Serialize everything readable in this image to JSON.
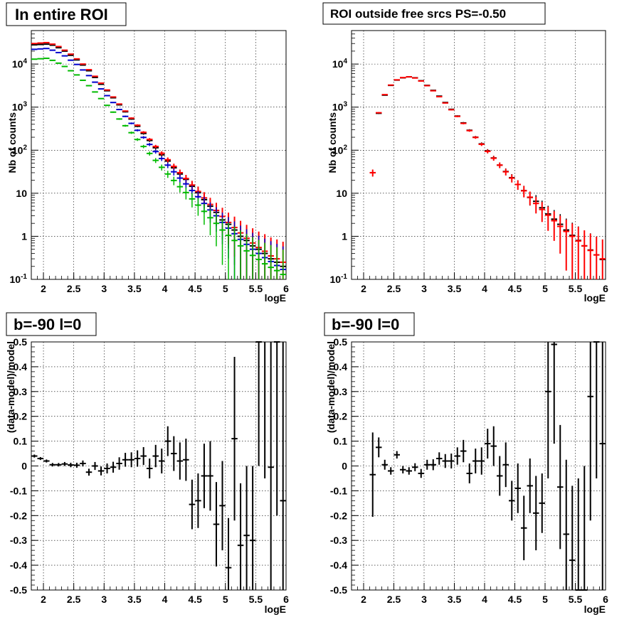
{
  "colors": {
    "data": "#000000",
    "model": "#ff0000",
    "blue": "#0000cc",
    "green": "#00bb00"
  },
  "chart_data": [
    {
      "type": "scatter",
      "title": "In entire ROI",
      "xlabel": "logE",
      "ylabel": "Nb of counts",
      "xlim": [
        1.8,
        6.0
      ],
      "ylim": [
        0.1,
        60000
      ],
      "yscale": "log",
      "grid": true,
      "x_ticks": [
        "2",
        "2.5",
        "3",
        "3.5",
        "4",
        "4.5",
        "5",
        "5.5",
        "6"
      ],
      "y_ticks": [
        "10^-1",
        "1",
        "10",
        "10^2",
        "10^3",
        "10^4"
      ],
      "bin_centers": [
        1.85,
        1.95,
        2.05,
        2.15,
        2.25,
        2.35,
        2.45,
        2.55,
        2.65,
        2.75,
        2.85,
        2.95,
        3.05,
        3.15,
        3.25,
        3.35,
        3.45,
        3.55,
        3.65,
        3.75,
        3.85,
        3.95,
        4.05,
        4.15,
        4.25,
        4.35,
        4.45,
        4.55,
        4.65,
        4.75,
        4.85,
        4.95,
        5.05,
        5.15,
        5.25,
        5.35,
        5.45,
        5.55,
        5.65,
        5.75,
        5.85,
        5.95
      ],
      "series": [
        {
          "color": "black",
          "values": [
            28000,
            28500,
            29000,
            27500,
            24000,
            20000,
            16000,
            12500,
            9500,
            7000,
            4900,
            3400,
            2400,
            1650,
            1130,
            780,
            530,
            360,
            245,
            168,
            114,
            78,
            56,
            39,
            28,
            21,
            14.5,
            10.3,
            7.1,
            5,
            3.6,
            2.4,
            1.9,
            1.4,
            1.0,
            0.8,
            0.6,
            0.5,
            0.4,
            0.3,
            0.25,
            0.2
          ]
        },
        {
          "color": "red",
          "values": [
            30000,
            30800,
            31500,
            29000,
            25500,
            21000,
            17000,
            13200,
            10000,
            7400,
            5200,
            3600,
            2500,
            1720,
            1180,
            810,
            555,
            380,
            260,
            178,
            122,
            85,
            60,
            42,
            30,
            22,
            15.5,
            11,
            7.8,
            5.5,
            4,
            2.9,
            2.1,
            1.6,
            1.2,
            0.9,
            0.7,
            0.55,
            0.45,
            0.35,
            0.3,
            0.25
          ]
        },
        {
          "color": "blue",
          "values": [
            22000,
            22500,
            23000,
            21000,
            18500,
            15500,
            12300,
            9800,
            7300,
            5400,
            3800,
            2650,
            1850,
            1280,
            880,
            610,
            420,
            290,
            198,
            136,
            93,
            64,
            45,
            31.5,
            22.5,
            16.5,
            11.6,
            8.3,
            5.8,
            4.1,
            3,
            2.1,
            1.55,
            1.15,
            0.85,
            0.65,
            0.5,
            0.4,
            0.32,
            0.26,
            0.21,
            0.17
          ]
        },
        {
          "color": "green",
          "values": [
            13000,
            13300,
            13600,
            12200,
            10500,
            8800,
            7000,
            5600,
            4200,
            3150,
            2250,
            1580,
            1100,
            765,
            530,
            370,
            255,
            177,
            122,
            84,
            58,
            40,
            28,
            19.8,
            14.2,
            10.4,
            7.4,
            5.3,
            3.8,
            2.7,
            2,
            1.4,
            1.05,
            0.8,
            0.6,
            0.46,
            0.36,
            0.29,
            0.23,
            0.19,
            0.16,
            0.13
          ]
        }
      ]
    },
    {
      "type": "scatter",
      "title": "ROI outside free srcs PS=-0.50",
      "xlabel": "logE",
      "ylabel": "Nb of counts",
      "xlim": [
        1.8,
        6.0
      ],
      "ylim": [
        0.1,
        60000
      ],
      "yscale": "log",
      "grid": true,
      "x_ticks": [
        "2",
        "2.5",
        "3",
        "3.5",
        "4",
        "4.5",
        "5",
        "5.5",
        "6"
      ],
      "y_ticks": [
        "10^-1",
        "1",
        "10",
        "10^2",
        "10^3",
        "10^4"
      ],
      "bin_centers": [
        2.15,
        2.25,
        2.35,
        2.45,
        2.55,
        2.65,
        2.75,
        2.85,
        2.95,
        3.05,
        3.15,
        3.25,
        3.35,
        3.45,
        3.55,
        3.65,
        3.75,
        3.85,
        3.95,
        4.05,
        4.15,
        4.25,
        4.35,
        4.45,
        4.55,
        4.65,
        4.75,
        4.85,
        4.95,
        5.05,
        5.15,
        5.25,
        5.35,
        5.45,
        5.55,
        5.65,
        5.75,
        5.85,
        5.95
      ],
      "series": [
        {
          "color": "black",
          "values": [
            30,
            720,
            1900,
            3200,
            4250,
            4800,
            5050,
            4800,
            4100,
            3200,
            2450,
            1800,
            1280,
            890,
            620,
            430,
            290,
            200,
            140,
            96,
            66,
            45,
            32,
            23,
            16,
            11.5,
            8,
            6.5,
            4.6,
            3.3,
            2.5,
            1.9,
            1.4,
            1.05,
            0.8,
            0.6,
            0.48,
            0.37,
            0.29
          ]
        },
        {
          "color": "red",
          "values": [
            30,
            740,
            1950,
            3250,
            4300,
            4850,
            5050,
            4750,
            4050,
            3150,
            2400,
            1750,
            1250,
            870,
            610,
            420,
            285,
            198,
            137,
            94,
            65,
            45,
            31.5,
            22.5,
            16,
            11.4,
            8.1,
            5.8,
            4.2,
            3.1,
            2.3,
            1.7,
            1.3,
            1.0,
            0.78,
            0.6,
            0.47,
            0.37,
            0.3
          ]
        }
      ]
    },
    {
      "type": "scatter",
      "title": "b=-90 l=0",
      "xlabel": "logE",
      "ylabel": "(data-model)/model",
      "xlim": [
        1.8,
        6.0
      ],
      "ylim": [
        -0.5,
        0.5
      ],
      "grid": true,
      "x_ticks": [
        "2",
        "2.5",
        "3",
        "3.5",
        "4",
        "4.5",
        "5",
        "5.5",
        "6"
      ],
      "y_ticks": [
        "-0.5",
        "-0.4",
        "-0.3",
        "-0.2",
        "-0.1",
        "0",
        "0.1",
        "0.2",
        "0.3",
        "0.4",
        "0.5"
      ],
      "x": [
        1.85,
        1.95,
        2.05,
        2.15,
        2.25,
        2.35,
        2.45,
        2.55,
        2.65,
        2.75,
        2.85,
        2.95,
        3.05,
        3.15,
        3.25,
        3.35,
        3.45,
        3.55,
        3.65,
        3.75,
        3.85,
        3.95,
        4.05,
        4.15,
        4.25,
        4.35,
        4.45,
        4.55,
        4.65,
        4.75,
        4.85,
        4.95,
        5.05,
        5.15,
        5.25,
        5.35,
        5.45,
        5.55,
        5.65,
        5.75,
        5.85,
        5.95
      ],
      "y": [
        0.04,
        0.03,
        0.02,
        0.005,
        0.005,
        0.008,
        0.004,
        0.003,
        0.01,
        -0.025,
        0.0,
        -0.02,
        -0.01,
        -0.005,
        0.01,
        0.025,
        0.025,
        0.03,
        0.04,
        -0.01,
        0.04,
        0.02,
        0.1,
        0.05,
        0.02,
        0.025,
        -0.155,
        -0.14,
        -0.04,
        -0.04,
        -0.235,
        -0.16,
        -0.41,
        0.11,
        -0.32,
        -0.28,
        -0.3,
        0.5,
        0.55,
        -0.005,
        0.5,
        -0.14
      ],
      "yerr": [
        0.006,
        0.006,
        0.006,
        0.007,
        0.007,
        0.008,
        0.009,
        0.01,
        0.012,
        0.014,
        0.016,
        0.018,
        0.02,
        0.022,
        0.025,
        0.028,
        0.03,
        0.033,
        0.036,
        0.04,
        0.045,
        0.05,
        0.06,
        0.07,
        0.075,
        0.085,
        0.1,
        0.11,
        0.13,
        0.14,
        0.17,
        0.18,
        0.2,
        0.33,
        0.25,
        0.28,
        0.3,
        0.5,
        0.6,
        0.7,
        0.7,
        0.8
      ]
    },
    {
      "type": "scatter",
      "title": "b=-90 l=0",
      "xlabel": "logE",
      "ylabel": "(data-model)/model",
      "xlim": [
        1.8,
        6.0
      ],
      "ylim": [
        -0.5,
        0.5
      ],
      "grid": true,
      "x_ticks": [
        "2",
        "2.5",
        "3",
        "3.5",
        "4",
        "4.5",
        "5",
        "5.5",
        "6"
      ],
      "y_ticks": [
        "-0.5",
        "-0.4",
        "-0.3",
        "-0.2",
        "-0.1",
        "0",
        "0.1",
        "0.2",
        "0.3",
        "0.4",
        "0.5"
      ],
      "x": [
        2.15,
        2.25,
        2.35,
        2.45,
        2.55,
        2.65,
        2.75,
        2.85,
        2.95,
        3.05,
        3.15,
        3.25,
        3.35,
        3.45,
        3.55,
        3.65,
        3.75,
        3.85,
        3.95,
        4.05,
        4.15,
        4.25,
        4.35,
        4.45,
        4.55,
        4.65,
        4.75,
        4.85,
        4.95,
        5.05,
        5.15,
        5.25,
        5.35,
        5.45,
        5.55,
        5.65,
        5.75,
        5.85,
        5.95
      ],
      "y": [
        -0.035,
        0.075,
        0.005,
        -0.02,
        0.045,
        -0.015,
        -0.02,
        -0.005,
        -0.03,
        0.005,
        0.005,
        0.03,
        0.02,
        0.02,
        0.04,
        0.06,
        -0.03,
        0.02,
        0.02,
        0.09,
        0.08,
        -0.04,
        0.005,
        -0.14,
        -0.09,
        -0.25,
        -0.08,
        -0.19,
        -0.15,
        0.3,
        0.49,
        -0.085,
        -0.275,
        -0.38,
        -0.5,
        -0.5,
        0.28,
        0.5,
        0.09
      ],
      "yerr": [
        0.17,
        0.04,
        0.02,
        0.015,
        0.015,
        0.015,
        0.015,
        0.016,
        0.018,
        0.02,
        0.022,
        0.025,
        0.028,
        0.03,
        0.035,
        0.045,
        0.04,
        0.05,
        0.055,
        0.06,
        0.08,
        0.08,
        0.09,
        0.08,
        0.1,
        0.13,
        0.11,
        0.15,
        0.12,
        0.35,
        0.4,
        0.25,
        0.3,
        0.3,
        0.45,
        0.5,
        0.5,
        0.55,
        0.6
      ]
    }
  ]
}
